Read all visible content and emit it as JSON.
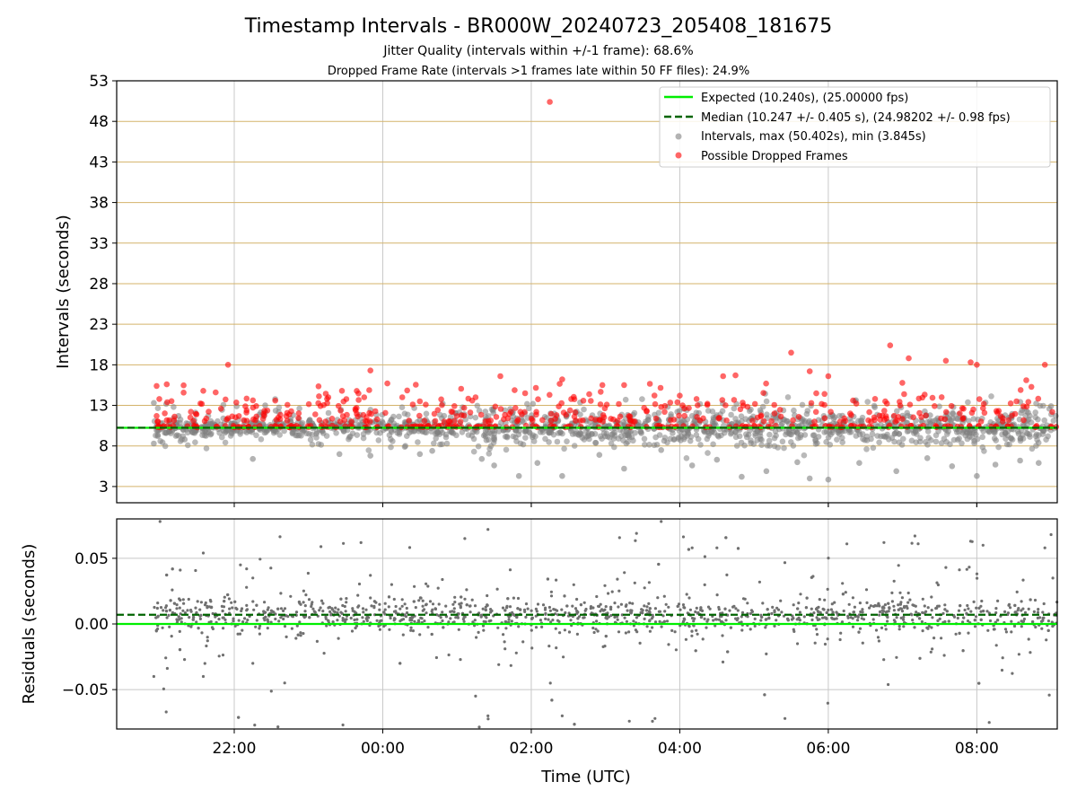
{
  "figure": {
    "title": "Timestamp Intervals - BR000W_20240723_205408_181675",
    "subtitle1": "Jitter Quality (intervals within +/-1 frame): 68.6%",
    "subtitle2": "Dropped Frame Rate (intervals >1 frames late within 50 FF files): 24.9%"
  },
  "colors": {
    "expected": "#00ee00",
    "median": "#006400",
    "intervals": "#808080",
    "dropped": "#ff0000",
    "hgrid_top": "#d4b36a",
    "grid": "#c8c8c8",
    "residual_points": "#707070"
  },
  "chart_data": [
    {
      "type": "scatter",
      "ylabel": "Intervals (seconds)",
      "ylim": [
        1,
        53
      ],
      "yticks": [
        "3",
        "8",
        "13",
        "18",
        "23",
        "28",
        "33",
        "38",
        "43",
        "48",
        "53"
      ],
      "xlim": [
        "20:25",
        "09:05"
      ],
      "xticks": [
        "22:00",
        "00:00",
        "02:00",
        "04:00",
        "06:00",
        "08:00"
      ],
      "grid": true,
      "legend_position": "top-right",
      "legend": [
        "Expected (10.240s), (25.00000 fps)",
        "Median (10.247 +/- 0.405 s), (24.98202 +/- 0.98 fps)",
        "Intervals, max (50.402s), min (3.845s)",
        "Possible Dropped Frames"
      ],
      "expected_interval": 10.24,
      "median_interval": 10.247,
      "series": [
        {
          "name": "Intervals, max (50.402s), min (3.845s)",
          "kind": "intervals",
          "note_time_span": [
            "20:55",
            "09:05"
          ],
          "typical_range": [
            5.5,
            14.5
          ],
          "points": [
            {
              "x": "20:55",
              "y": 13.3
            },
            {
              "x": "20:55",
              "y": 8.3
            },
            {
              "x": "21:05",
              "y": 9.6
            },
            {
              "x": "21:15",
              "y": 11.7
            },
            {
              "x": "21:20",
              "y": 8.8
            },
            {
              "x": "21:55",
              "y": 11.2
            },
            {
              "x": "22:15",
              "y": 6.4
            },
            {
              "x": "22:25",
              "y": 13.0
            },
            {
              "x": "23:25",
              "y": 7.0
            },
            {
              "x": "23:50",
              "y": 6.8
            },
            {
              "x": "00:20",
              "y": 10.3
            },
            {
              "x": "00:30",
              "y": 7.0
            },
            {
              "x": "00:40",
              "y": 7.4
            },
            {
              "x": "01:20",
              "y": 6.4
            },
            {
              "x": "01:30",
              "y": 5.6
            },
            {
              "x": "01:50",
              "y": 4.3
            },
            {
              "x": "02:05",
              "y": 5.9
            },
            {
              "x": "02:25",
              "y": 4.3
            },
            {
              "x": "02:55",
              "y": 6.9
            },
            {
              "x": "03:15",
              "y": 5.2
            },
            {
              "x": "03:45",
              "y": 7.5
            },
            {
              "x": "04:10",
              "y": 5.6
            },
            {
              "x": "04:30",
              "y": 6.3
            },
            {
              "x": "04:50",
              "y": 4.2
            },
            {
              "x": "05:10",
              "y": 4.9
            },
            {
              "x": "05:35",
              "y": 6.0
            },
            {
              "x": "05:45",
              "y": 4.0
            },
            {
              "x": "06:00",
              "y": 3.85
            },
            {
              "x": "06:25",
              "y": 5.9
            },
            {
              "x": "06:55",
              "y": 4.9
            },
            {
              "x": "07:20",
              "y": 6.5
            },
            {
              "x": "07:40",
              "y": 5.5
            },
            {
              "x": "08:00",
              "y": 4.3
            },
            {
              "x": "08:15",
              "y": 5.7
            },
            {
              "x": "08:35",
              "y": 6.2
            },
            {
              "x": "08:50",
              "y": 5.9
            },
            {
              "x": "09:00",
              "y": 12.9
            }
          ]
        },
        {
          "name": "Possible Dropped Frames",
          "kind": "dropped",
          "points": [
            {
              "x": "02:15",
              "y": 50.4
            },
            {
              "x": "21:35",
              "y": 14.8
            },
            {
              "x": "21:45",
              "y": 14.6
            },
            {
              "x": "21:55",
              "y": 18.0
            },
            {
              "x": "22:10",
              "y": 12.4
            },
            {
              "x": "23:15",
              "y": 13.8
            },
            {
              "x": "23:45",
              "y": 14.0
            },
            {
              "x": "23:50",
              "y": 17.3
            },
            {
              "x": "00:30",
              "y": 13.5
            },
            {
              "x": "01:15",
              "y": 14.0
            },
            {
              "x": "01:35",
              "y": 16.6
            },
            {
              "x": "01:55",
              "y": 14.5
            },
            {
              "x": "02:25",
              "y": 16.2
            },
            {
              "x": "03:15",
              "y": 15.5
            },
            {
              "x": "03:45",
              "y": 12.8
            },
            {
              "x": "04:00",
              "y": 14.2
            },
            {
              "x": "04:35",
              "y": 16.6
            },
            {
              "x": "04:45",
              "y": 16.7
            },
            {
              "x": "05:30",
              "y": 19.5
            },
            {
              "x": "05:45",
              "y": 17.2
            },
            {
              "x": "06:00",
              "y": 16.6
            },
            {
              "x": "06:20",
              "y": 13.6
            },
            {
              "x": "06:50",
              "y": 20.4
            },
            {
              "x": "07:05",
              "y": 18.8
            },
            {
              "x": "07:35",
              "y": 18.5
            },
            {
              "x": "07:55",
              "y": 18.3
            },
            {
              "x": "08:00",
              "y": 18.0
            },
            {
              "x": "08:40",
              "y": 16.1
            },
            {
              "x": "08:55",
              "y": 18.0
            },
            {
              "x": "21:00",
              "y": 10.3
            },
            {
              "x": "21:30",
              "y": 10.3
            },
            {
              "x": "22:00",
              "y": 10.3
            },
            {
              "x": "22:45",
              "y": 10.3
            },
            {
              "x": "23:00",
              "y": 10.3
            },
            {
              "x": "23:55",
              "y": 10.3
            },
            {
              "x": "00:15",
              "y": 10.3
            },
            {
              "x": "01:15",
              "y": 10.3
            },
            {
              "x": "02:05",
              "y": 10.3
            },
            {
              "x": "03:20",
              "y": 10.3
            },
            {
              "x": "03:50",
              "y": 10.3
            },
            {
              "x": "06:35",
              "y": 10.3
            }
          ]
        }
      ]
    },
    {
      "type": "scatter",
      "xlabel": "Time (UTC)",
      "ylabel": "Residuals (seconds)",
      "ylim": [
        -0.08,
        0.08
      ],
      "yticks": [
        "−0.05",
        "0.00",
        "0.05"
      ],
      "xlim": [
        "20:25",
        "09:05"
      ],
      "xticks": [
        "22:00",
        "00:00",
        "02:00",
        "04:00",
        "06:00",
        "08:00"
      ],
      "grid": true,
      "expected_residual": 0.0,
      "median_residual": 0.007,
      "series": [
        {
          "name": "Residuals",
          "kind": "residuals",
          "note_time_span": [
            "20:55",
            "09:05"
          ],
          "typical_range": [
            -0.02,
            0.025
          ],
          "points": [
            {
              "x": "21:00",
              "y": 0.078
            },
            {
              "x": "20:55",
              "y": -0.04
            },
            {
              "x": "21:05",
              "y": -0.067
            },
            {
              "x": "21:35",
              "y": 0.054
            },
            {
              "x": "21:35",
              "y": -0.04
            },
            {
              "x": "22:05",
              "y": 0.045
            },
            {
              "x": "22:10",
              "y": 0.042
            },
            {
              "x": "22:15",
              "y": 0.035
            },
            {
              "x": "22:15",
              "y": -0.03
            },
            {
              "x": "23:50",
              "y": 0.037
            },
            {
              "x": "01:15",
              "y": -0.055
            },
            {
              "x": "01:25",
              "y": 0.072
            },
            {
              "x": "01:25",
              "y": -0.07
            },
            {
              "x": "02:25",
              "y": -0.07
            },
            {
              "x": "03:25",
              "y": 0.069
            },
            {
              "x": "03:40",
              "y": -0.072
            },
            {
              "x": "03:45",
              "y": 0.078
            },
            {
              "x": "04:10",
              "y": 0.058
            },
            {
              "x": "04:30",
              "y": 0.058
            },
            {
              "x": "05:25",
              "y": -0.072
            },
            {
              "x": "06:15",
              "y": 0.061
            },
            {
              "x": "06:45",
              "y": 0.062
            },
            {
              "x": "07:10",
              "y": 0.067
            },
            {
              "x": "07:35",
              "y": 0.043
            },
            {
              "x": "07:55",
              "y": 0.063
            },
            {
              "x": "08:05",
              "y": 0.06
            },
            {
              "x": "08:10",
              "y": -0.075
            },
            {
              "x": "08:55",
              "y": 0.058
            },
            {
              "x": "09:00",
              "y": 0.068
            }
          ]
        }
      ]
    }
  ]
}
